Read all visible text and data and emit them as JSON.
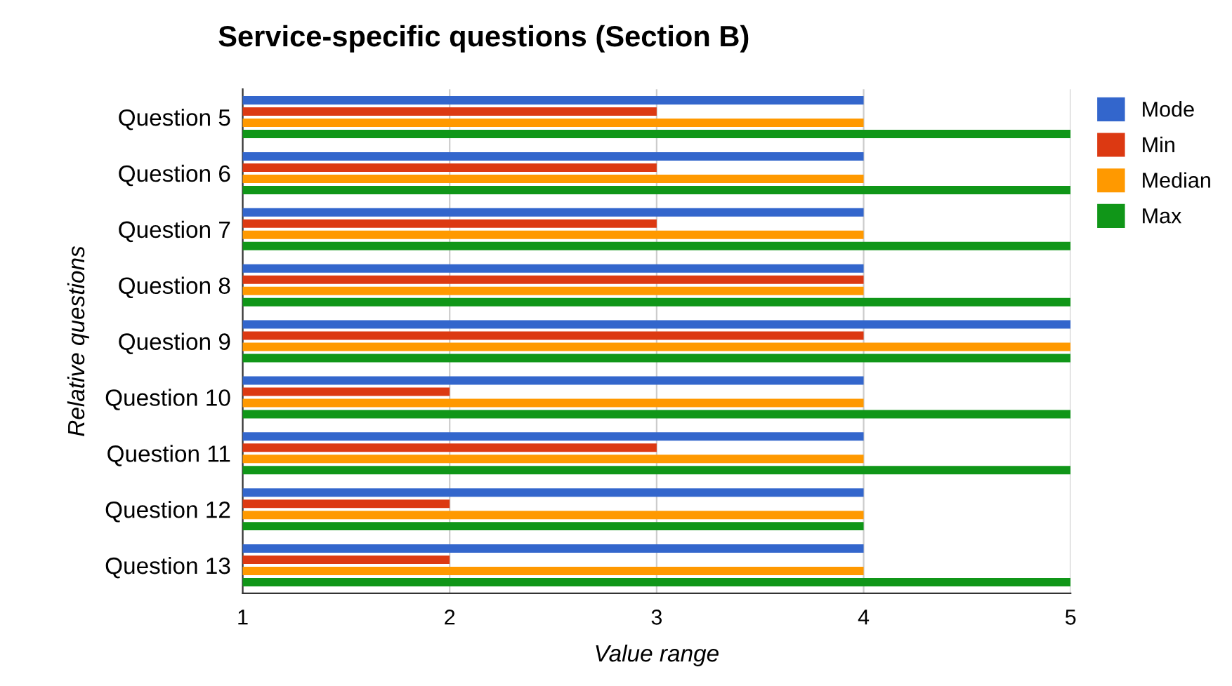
{
  "chart_data": {
    "type": "bar",
    "orientation": "horizontal",
    "title": "Service-specific questions (Section B)",
    "xlabel": "Value range",
    "ylabel": "Relative questions",
    "categories": [
      "Question 5",
      "Question 6",
      "Question 7",
      "Question 8",
      "Question 9",
      "Question 10",
      "Question 11",
      "Question 12",
      "Question 13"
    ],
    "series": [
      {
        "name": "Mode",
        "color": "#3366cc",
        "values": [
          4,
          4,
          4,
          4,
          5,
          4,
          4,
          4,
          4
        ]
      },
      {
        "name": "Min",
        "color": "#dc3912",
        "values": [
          3,
          3,
          3,
          4,
          4,
          2,
          3,
          2,
          2
        ]
      },
      {
        "name": "Median",
        "color": "#ff9900",
        "values": [
          4,
          4,
          4,
          4,
          5,
          4,
          4,
          4,
          4
        ]
      },
      {
        "name": "Max",
        "color": "#109618",
        "values": [
          5,
          5,
          5,
          5,
          5,
          5,
          5,
          4,
          5
        ]
      }
    ],
    "xlim": [
      1,
      5
    ],
    "xticks": [
      1,
      2,
      3,
      4,
      5
    ],
    "grid": "x",
    "legend": "top right"
  }
}
